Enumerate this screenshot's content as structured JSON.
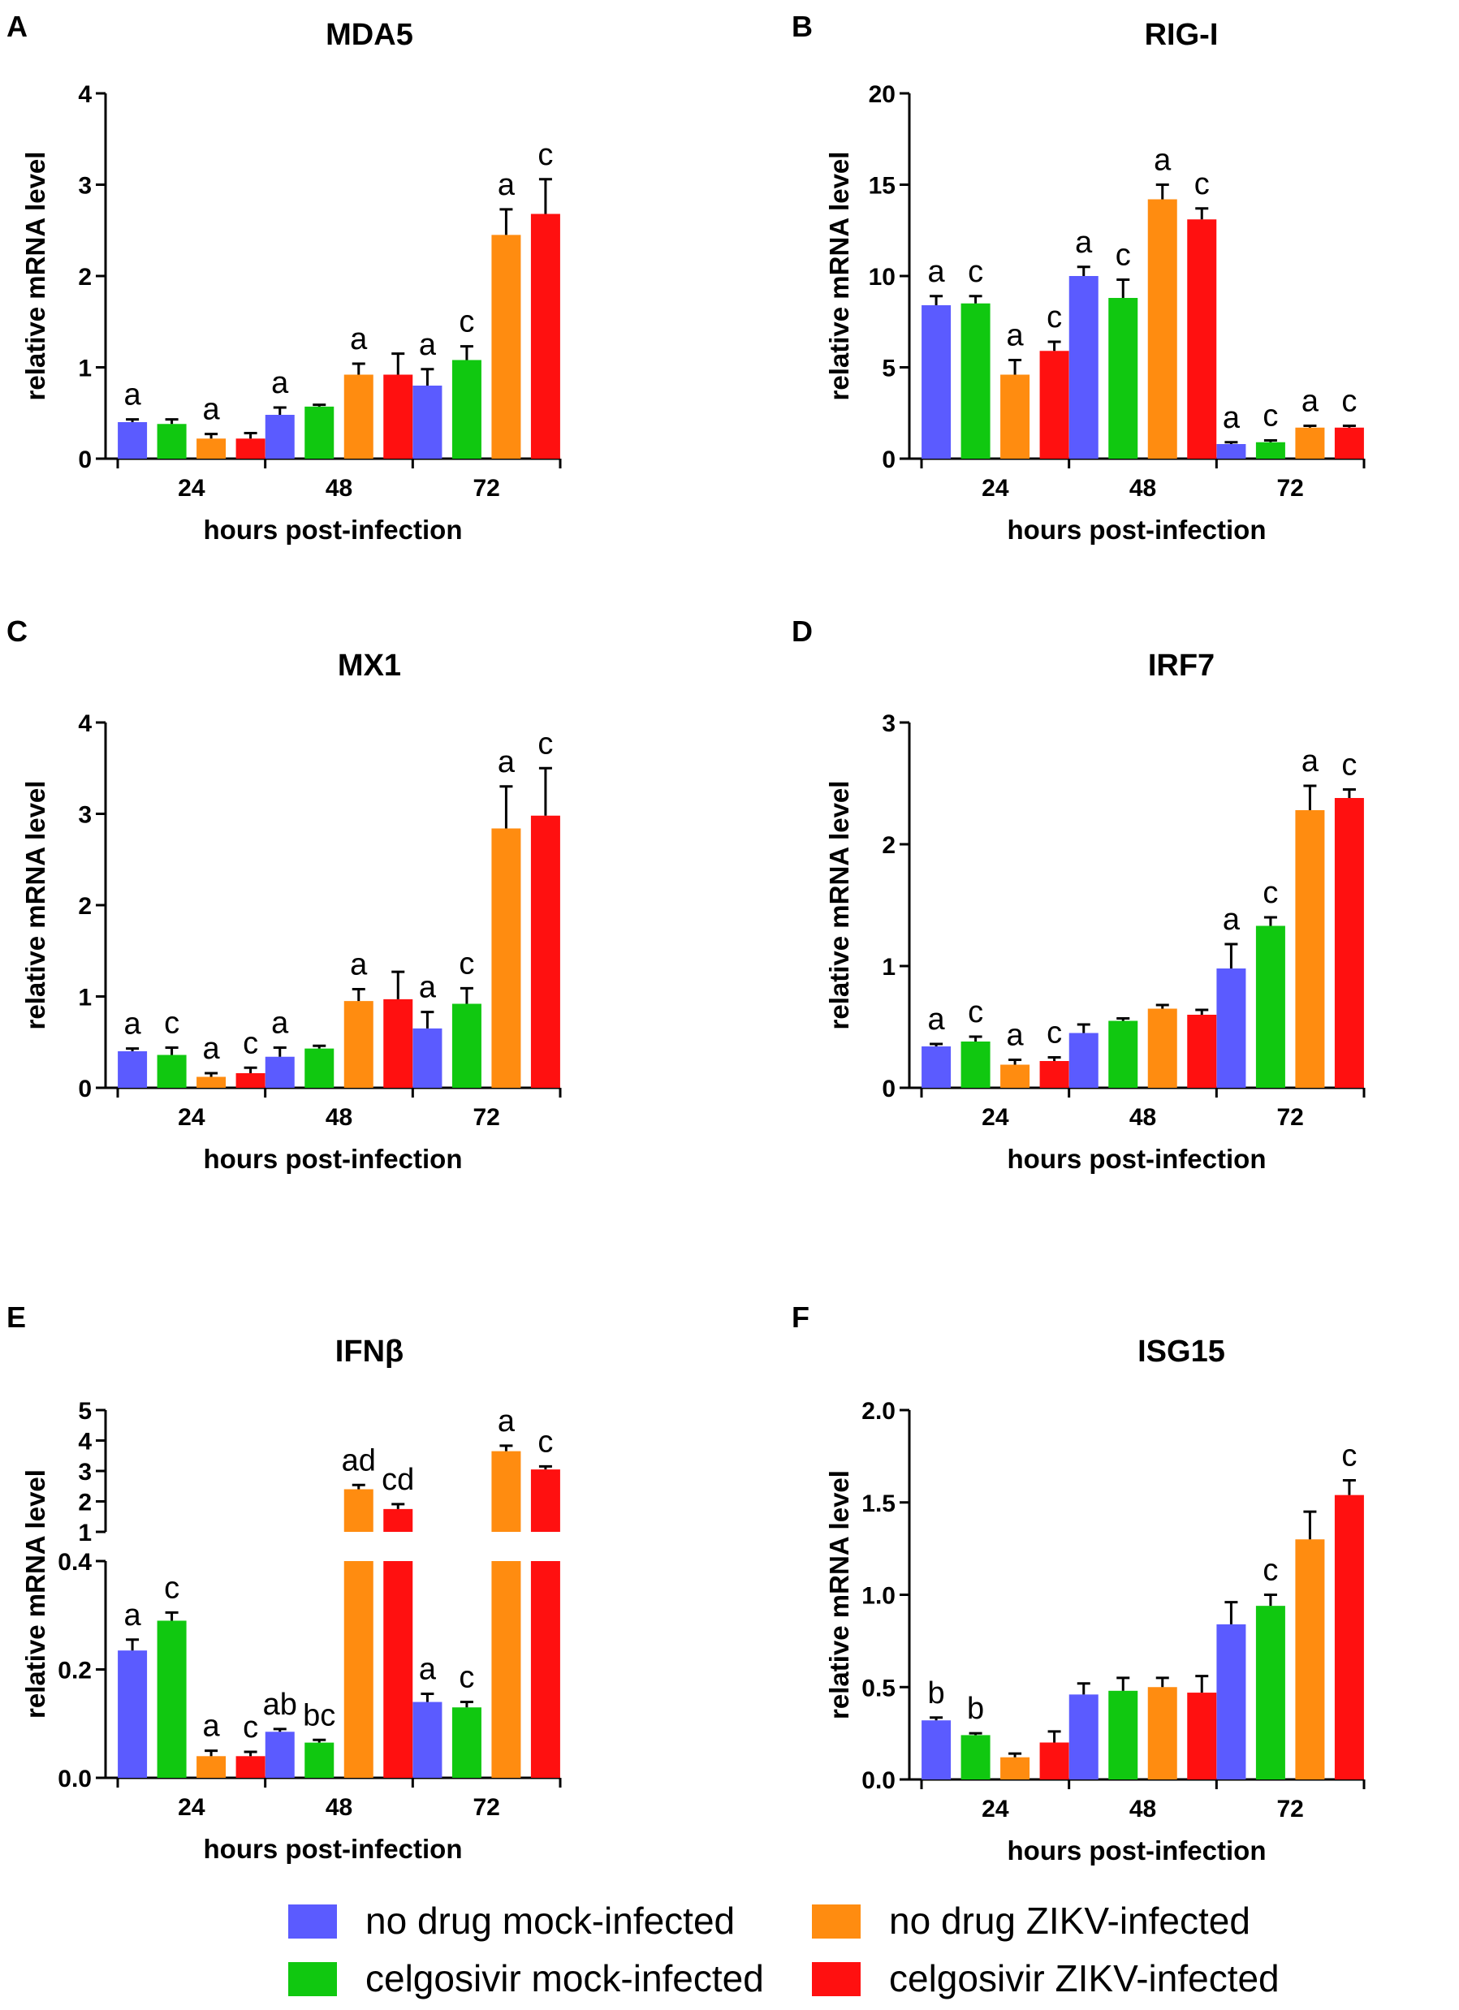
{
  "legend": [
    {
      "label": "no drug mock-infected",
      "color": "#5b5bff"
    },
    {
      "label": "celgosivir mock-infected",
      "color": "#10c810"
    },
    {
      "label": "no drug ZIKV-infected",
      "color": "#ff8c10"
    },
    {
      "label": "celgosivir ZIKV-infected",
      "color": "#ff1010"
    }
  ],
  "chart_data": [
    {
      "type": "bar",
      "letter": "A",
      "title": "MDA5",
      "xlabel": "hours post-infection",
      "ylabel": "relative mRNA level",
      "categories": [
        "24",
        "48",
        "72"
      ],
      "ylim": [
        0,
        4
      ],
      "yticks": [
        "0",
        "1",
        "2",
        "3",
        "4"
      ],
      "series": [
        {
          "name": "no drug mock-infected",
          "values": [
            0.4,
            0.48,
            0.8
          ],
          "errors": [
            0.03,
            0.08,
            0.18
          ],
          "letters": [
            "a",
            "a",
            "a"
          ]
        },
        {
          "name": "celgosivir mock-infected",
          "values": [
            0.38,
            0.57,
            1.08
          ],
          "errors": [
            0.05,
            0.02,
            0.15
          ],
          "letters": [
            "",
            "",
            "c"
          ]
        },
        {
          "name": "no drug ZIKV-infected",
          "values": [
            0.22,
            0.92,
            2.45
          ],
          "errors": [
            0.05,
            0.12,
            0.28
          ],
          "letters": [
            "a",
            "a",
            "a"
          ]
        },
        {
          "name": "celgosivir ZIKV-infected",
          "values": [
            0.22,
            0.92,
            2.68
          ],
          "errors": [
            0.06,
            0.23,
            0.38
          ],
          "letters": [
            "",
            "",
            "c"
          ]
        }
      ]
    },
    {
      "type": "bar",
      "letter": "B",
      "title": "RIG-I",
      "xlabel": "hours post-infection",
      "ylabel": "relative mRNA level",
      "categories": [
        "24",
        "48",
        "72"
      ],
      "ylim": [
        0,
        20
      ],
      "yticks": [
        "0",
        "5",
        "10",
        "15",
        "20"
      ],
      "series": [
        {
          "name": "no drug mock-infected",
          "values": [
            8.4,
            10.0,
            0.8
          ],
          "errors": [
            0.5,
            0.5,
            0.1
          ],
          "letters": [
            "a",
            "a",
            "a"
          ]
        },
        {
          "name": "celgosivir mock-infected",
          "values": [
            8.5,
            8.8,
            0.9
          ],
          "errors": [
            0.4,
            1.0,
            0.1
          ],
          "letters": [
            "c",
            "c",
            "c"
          ]
        },
        {
          "name": "no drug ZIKV-infected",
          "values": [
            4.6,
            14.2,
            1.7
          ],
          "errors": [
            0.8,
            0.8,
            0.1
          ],
          "letters": [
            "a",
            "a",
            "a"
          ]
        },
        {
          "name": "celgosivir ZIKV-infected",
          "values": [
            5.9,
            13.1,
            1.7
          ],
          "errors": [
            0.5,
            0.6,
            0.1
          ],
          "letters": [
            "c",
            "c",
            "c"
          ]
        }
      ]
    },
    {
      "type": "bar",
      "letter": "C",
      "title": "MX1",
      "xlabel": "hours post-infection",
      "ylabel": "relative mRNA level",
      "categories": [
        "24",
        "48",
        "72"
      ],
      "ylim": [
        0,
        4
      ],
      "yticks": [
        "0",
        "1",
        "2",
        "3",
        "4"
      ],
      "series": [
        {
          "name": "no drug mock-infected",
          "values": [
            0.4,
            0.34,
            0.65
          ],
          "errors": [
            0.03,
            0.1,
            0.18
          ],
          "letters": [
            "a",
            "a",
            "a"
          ]
        },
        {
          "name": "celgosivir mock-infected",
          "values": [
            0.36,
            0.43,
            0.92
          ],
          "errors": [
            0.08,
            0.03,
            0.17
          ],
          "letters": [
            "c",
            "",
            "c"
          ]
        },
        {
          "name": "no drug ZIKV-infected",
          "values": [
            0.12,
            0.95,
            2.84
          ],
          "errors": [
            0.04,
            0.13,
            0.46
          ],
          "letters": [
            "a",
            "a",
            "a"
          ]
        },
        {
          "name": "celgosivir ZIKV-infected",
          "values": [
            0.16,
            0.97,
            2.98
          ],
          "errors": [
            0.06,
            0.3,
            0.52
          ],
          "letters": [
            "c",
            "",
            "c"
          ]
        }
      ]
    },
    {
      "type": "bar",
      "letter": "D",
      "title": "IRF7",
      "xlabel": "hours post-infection",
      "ylabel": "relative mRNA level",
      "categories": [
        "24",
        "48",
        "72"
      ],
      "ylim": [
        0,
        3
      ],
      "yticks": [
        "0",
        "1",
        "2",
        "3"
      ],
      "series": [
        {
          "name": "no drug mock-infected",
          "values": [
            0.34,
            0.45,
            0.98
          ],
          "errors": [
            0.02,
            0.07,
            0.2
          ],
          "letters": [
            "a",
            "",
            "a"
          ]
        },
        {
          "name": "celgosivir mock-infected",
          "values": [
            0.38,
            0.55,
            1.33
          ],
          "errors": [
            0.04,
            0.02,
            0.07
          ],
          "letters": [
            "c",
            "",
            "c"
          ]
        },
        {
          "name": "no drug ZIKV-infected",
          "values": [
            0.19,
            0.65,
            2.28
          ],
          "errors": [
            0.04,
            0.03,
            0.2
          ],
          "letters": [
            "a",
            "",
            "a"
          ]
        },
        {
          "name": "celgosivir ZIKV-infected",
          "values": [
            0.22,
            0.6,
            2.38
          ],
          "errors": [
            0.03,
            0.04,
            0.07
          ],
          "letters": [
            "c",
            "",
            "c"
          ]
        }
      ]
    },
    {
      "type": "bar",
      "letter": "E",
      "title": "IFNβ",
      "xlabel": "hours post-infection",
      "ylabel": "relative mRNA level",
      "categories": [
        "24",
        "48",
        "72"
      ],
      "ylim": [
        0,
        5
      ],
      "y_break": [
        0.4,
        1
      ],
      "yticks_lower": [
        "0.0",
        "0.2",
        "0.4"
      ],
      "yticks_upper": [
        "1",
        "2",
        "3",
        "4",
        "5"
      ],
      "series": [
        {
          "name": "no drug mock-infected",
          "values": [
            0.235,
            0.085,
            0.14
          ],
          "errors": [
            0.02,
            0.005,
            0.015
          ],
          "letters": [
            "a",
            "ab",
            "a"
          ]
        },
        {
          "name": "celgosivir mock-infected",
          "values": [
            0.29,
            0.065,
            0.13
          ],
          "errors": [
            0.015,
            0.005,
            0.01
          ],
          "letters": [
            "c",
            "bc",
            "c"
          ]
        },
        {
          "name": "no drug ZIKV-infected",
          "values": [
            0.04,
            2.4,
            3.65
          ],
          "errors": [
            0.01,
            0.14,
            0.18
          ],
          "letters": [
            "a",
            "ad",
            "a"
          ]
        },
        {
          "name": "celgosivir ZIKV-infected",
          "values": [
            0.04,
            1.75,
            3.05
          ],
          "errors": [
            0.008,
            0.16,
            0.1
          ],
          "letters": [
            "c",
            "cd",
            "c"
          ]
        }
      ]
    },
    {
      "type": "bar",
      "letter": "F",
      "title": "ISG15",
      "xlabel": "hours post-infection",
      "ylabel": "relative mRNA level",
      "categories": [
        "24",
        "48",
        "72"
      ],
      "ylim": [
        0,
        2
      ],
      "yticks": [
        "0.0",
        "0.5",
        "1.0",
        "1.5",
        "2.0"
      ],
      "series": [
        {
          "name": "no drug mock-infected",
          "values": [
            0.32,
            0.46,
            0.84
          ],
          "errors": [
            0.015,
            0.06,
            0.12
          ],
          "letters": [
            "b",
            "",
            ""
          ]
        },
        {
          "name": "celgosivir mock-infected",
          "values": [
            0.24,
            0.48,
            0.94
          ],
          "errors": [
            0.01,
            0.07,
            0.06
          ],
          "letters": [
            "b",
            "",
            "c"
          ]
        },
        {
          "name": "no drug ZIKV-infected",
          "values": [
            0.12,
            0.5,
            1.3
          ],
          "errors": [
            0.02,
            0.05,
            0.15
          ],
          "letters": [
            "",
            "",
            ""
          ]
        },
        {
          "name": "celgosivir ZIKV-infected",
          "values": [
            0.2,
            0.47,
            1.54
          ],
          "errors": [
            0.06,
            0.09,
            0.08
          ],
          "letters": [
            "",
            "",
            "c"
          ]
        }
      ]
    }
  ]
}
